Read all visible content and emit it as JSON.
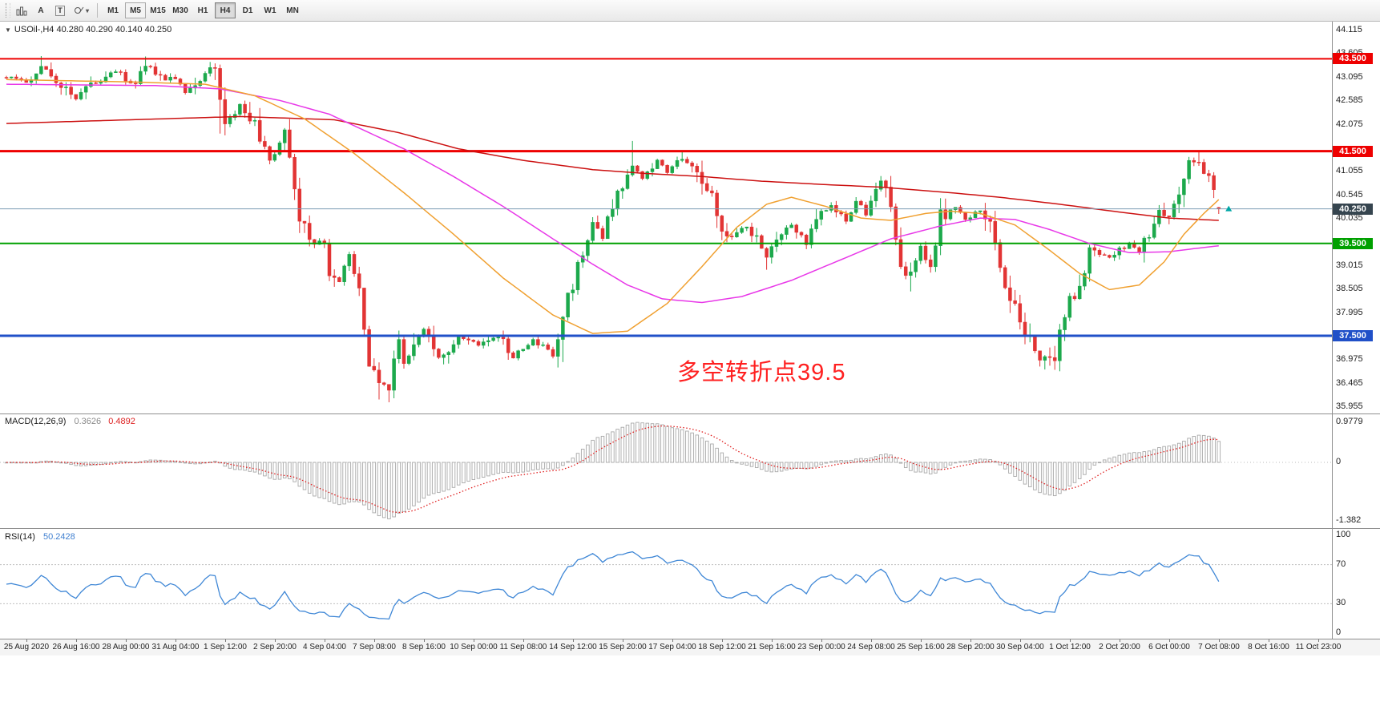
{
  "toolbar": {
    "tools": [
      {
        "name": "chart-icon"
      },
      {
        "name": "text-tool",
        "label": "A"
      },
      {
        "name": "label-tool",
        "label": "T"
      },
      {
        "name": "shapes-tool"
      }
    ],
    "timeframes": [
      {
        "label": "M1",
        "state": "normal"
      },
      {
        "label": "M5",
        "state": "hover"
      },
      {
        "label": "M15",
        "state": "normal"
      },
      {
        "label": "M30",
        "state": "normal"
      },
      {
        "label": "H1",
        "state": "normal"
      },
      {
        "label": "H4",
        "state": "active"
      },
      {
        "label": "D1",
        "state": "normal"
      },
      {
        "label": "W1",
        "state": "normal"
      },
      {
        "label": "MN",
        "state": "normal"
      }
    ]
  },
  "chart_data": {
    "type": "candlestick",
    "symbol": "USOil",
    "timeframe": "H4",
    "symbol_line": "USOil-,H4  40.280 40.290 40.140 40.250",
    "current_ohlc": {
      "open": 40.28,
      "high": 40.29,
      "low": 40.14,
      "close": 40.25
    },
    "annotation": {
      "text": "多空转折点39.5",
      "color": "#ff2020"
    },
    "price_axis": {
      "max": 44.115,
      "min": 35.955,
      "ticks": [
        44.115,
        43.605,
        43.095,
        42.585,
        42.075,
        41.055,
        40.545,
        40.035,
        39.015,
        38.505,
        37.995,
        36.975,
        36.465,
        35.955
      ]
    },
    "horizontal_levels": [
      {
        "price": 43.5,
        "color": "#ee0000",
        "width": 2,
        "label": "43.500"
      },
      {
        "price": 41.5,
        "color": "#ee0000",
        "width": 3,
        "label": "41.500"
      },
      {
        "price": 39.5,
        "color": "#00a000",
        "width": 2,
        "label": "39.500"
      },
      {
        "price": 37.5,
        "color": "#2050c8",
        "width": 3,
        "label": "37.500"
      }
    ],
    "current_price": {
      "value": 40.25,
      "label": "40.250",
      "line_color": "#7d9db4",
      "badge_color": "#36454f",
      "arrow_color": "#00a6a6"
    },
    "candle_count": 245,
    "candle_colors": {
      "up": "#1ca94c",
      "down": "#e23434"
    },
    "last_candle": [
      40.28,
      40.29,
      40.14,
      40.25
    ],
    "price_path_anchors": [
      [
        0,
        43.1
      ],
      [
        4,
        43.0
      ],
      [
        7,
        43.35
      ],
      [
        10,
        43.05
      ],
      [
        14,
        42.65
      ],
      [
        18,
        43.0
      ],
      [
        22,
        43.25
      ],
      [
        26,
        42.9
      ],
      [
        28,
        43.4
      ],
      [
        31,
        43.1
      ],
      [
        34,
        43.05
      ],
      [
        36,
        42.8
      ],
      [
        40,
        43.2
      ],
      [
        42,
        43.3
      ],
      [
        44,
        42.1
      ],
      [
        47,
        42.5
      ],
      [
        50,
        42.1
      ],
      [
        53,
        41.3
      ],
      [
        56,
        41.9
      ],
      [
        58,
        40.6
      ],
      [
        59,
        40.0
      ],
      [
        62,
        39.5
      ],
      [
        64,
        39.6
      ],
      [
        65,
        38.7
      ],
      [
        67,
        38.75
      ],
      [
        69,
        39.2
      ],
      [
        71,
        38.5
      ],
      [
        73,
        36.9
      ],
      [
        75,
        36.5
      ],
      [
        77,
        36.4
      ],
      [
        79,
        37.4
      ],
      [
        80,
        36.95
      ],
      [
        82,
        37.2
      ],
      [
        84,
        37.65
      ],
      [
        87,
        37.0
      ],
      [
        91,
        37.5
      ],
      [
        95,
        37.3
      ],
      [
        99,
        37.5
      ],
      [
        102,
        37.05
      ],
      [
        106,
        37.4
      ],
      [
        110,
        37.15
      ],
      [
        113,
        38.3
      ],
      [
        116,
        39.3
      ],
      [
        118,
        39.9
      ],
      [
        120,
        39.6
      ],
      [
        123,
        40.6
      ],
      [
        126,
        41.2
      ],
      [
        128,
        40.9
      ],
      [
        131,
        41.3
      ],
      [
        133,
        41.05
      ],
      [
        136,
        41.35
      ],
      [
        139,
        41.15
      ],
      [
        142,
        40.5
      ],
      [
        144,
        39.9
      ],
      [
        146,
        39.6
      ],
      [
        149,
        39.9
      ],
      [
        153,
        39.2
      ],
      [
        156,
        39.7
      ],
      [
        158,
        39.9
      ],
      [
        161,
        39.5
      ],
      [
        164,
        40.2
      ],
      [
        166,
        40.3
      ],
      [
        169,
        40.0
      ],
      [
        171,
        40.4
      ],
      [
        173,
        40.15
      ],
      [
        176,
        40.85
      ],
      [
        178,
        40.3
      ],
      [
        180,
        38.9
      ],
      [
        182,
        38.8
      ],
      [
        184,
        39.4
      ],
      [
        186,
        38.95
      ],
      [
        188,
        40.1
      ],
      [
        191,
        40.3
      ],
      [
        193,
        40.0
      ],
      [
        196,
        40.25
      ],
      [
        198,
        39.9
      ],
      [
        201,
        38.4
      ],
      [
        203,
        38.2
      ],
      [
        205,
        37.6
      ],
      [
        208,
        37.0
      ],
      [
        211,
        37.1
      ],
      [
        214,
        38.3
      ],
      [
        216,
        38.5
      ],
      [
        218,
        39.3
      ],
      [
        222,
        39.2
      ],
      [
        226,
        39.5
      ],
      [
        228,
        39.3
      ],
      [
        230,
        39.7
      ],
      [
        232,
        40.3
      ],
      [
        234,
        40.05
      ],
      [
        236,
        40.7
      ],
      [
        238,
        41.2
      ],
      [
        240,
        41.3
      ],
      [
        242,
        40.9
      ],
      [
        244,
        40.25
      ]
    ],
    "spikes": [
      {
        "i": 7,
        "high": 43.56
      },
      {
        "i": 28,
        "high": 43.55
      },
      {
        "i": 43,
        "low": 41.88
      },
      {
        "i": 59,
        "low": 39.86
      },
      {
        "i": 75,
        "low": 36.12
      },
      {
        "i": 77,
        "low": 36.06
      },
      {
        "i": 88,
        "low": 36.88
      },
      {
        "i": 112,
        "low": 36.93
      },
      {
        "i": 126,
        "high": 41.72
      },
      {
        "i": 136,
        "high": 41.5
      },
      {
        "i": 153,
        "low": 38.93
      },
      {
        "i": 176,
        "high": 40.96
      },
      {
        "i": 182,
        "low": 38.46
      },
      {
        "i": 209,
        "low": 36.77
      },
      {
        "i": 240,
        "high": 41.48
      }
    ],
    "moving_averages": [
      {
        "name": "ma-slow-red",
        "color": "#cc1111",
        "points": [
          [
            0,
            42.1
          ],
          [
            25,
            42.18
          ],
          [
            47,
            42.25
          ],
          [
            66,
            42.18
          ],
          [
            79,
            41.9
          ],
          [
            91,
            41.55
          ],
          [
            104,
            41.3
          ],
          [
            118,
            41.1
          ],
          [
            128,
            41.02
          ],
          [
            140,
            40.95
          ],
          [
            152,
            40.85
          ],
          [
            164,
            40.78
          ],
          [
            176,
            40.72
          ],
          [
            190,
            40.6
          ],
          [
            200,
            40.5
          ],
          [
            212,
            40.35
          ],
          [
            224,
            40.18
          ],
          [
            234,
            40.05
          ],
          [
            244,
            40.0
          ]
        ]
      },
      {
        "name": "ma-mid-magenta",
        "color": "#e838e8",
        "points": [
          [
            0,
            42.95
          ],
          [
            30,
            42.92
          ],
          [
            43,
            42.85
          ],
          [
            55,
            42.6
          ],
          [
            65,
            42.3
          ],
          [
            80,
            41.55
          ],
          [
            90,
            40.95
          ],
          [
            100,
            40.3
          ],
          [
            110,
            39.6
          ],
          [
            118,
            39.05
          ],
          [
            125,
            38.6
          ],
          [
            132,
            38.3
          ],
          [
            140,
            38.22
          ],
          [
            148,
            38.35
          ],
          [
            158,
            38.7
          ],
          [
            168,
            39.15
          ],
          [
            178,
            39.6
          ],
          [
            188,
            39.88
          ],
          [
            196,
            40.05
          ],
          [
            203,
            40.02
          ],
          [
            210,
            39.8
          ],
          [
            218,
            39.5
          ],
          [
            226,
            39.3
          ],
          [
            234,
            39.32
          ],
          [
            240,
            39.4
          ],
          [
            244,
            39.45
          ]
        ]
      },
      {
        "name": "ma-fast-orange",
        "color": "#f0a030",
        "points": [
          [
            0,
            43.05
          ],
          [
            25,
            43.0
          ],
          [
            40,
            42.95
          ],
          [
            50,
            42.7
          ],
          [
            60,
            42.2
          ],
          [
            70,
            41.45
          ],
          [
            80,
            40.6
          ],
          [
            90,
            39.7
          ],
          [
            100,
            38.75
          ],
          [
            110,
            37.95
          ],
          [
            118,
            37.55
          ],
          [
            125,
            37.6
          ],
          [
            133,
            38.2
          ],
          [
            140,
            39.0
          ],
          [
            147,
            39.85
          ],
          [
            153,
            40.35
          ],
          [
            158,
            40.5
          ],
          [
            165,
            40.3
          ],
          [
            172,
            40.05
          ],
          [
            178,
            40.0
          ],
          [
            185,
            40.15
          ],
          [
            190,
            40.2
          ],
          [
            196,
            40.15
          ],
          [
            203,
            39.9
          ],
          [
            210,
            39.35
          ],
          [
            216,
            38.85
          ],
          [
            222,
            38.5
          ],
          [
            228,
            38.6
          ],
          [
            233,
            39.1
          ],
          [
            237,
            39.7
          ],
          [
            241,
            40.15
          ],
          [
            244,
            40.45
          ]
        ]
      }
    ],
    "macd": {
      "label": "MACD(12,26,9)",
      "value_main": "0.3626",
      "value_signal": "0.4892",
      "axis_max": "0.9779",
      "axis_zero": "0",
      "axis_min": "-1.382",
      "params": [
        12,
        26,
        9
      ],
      "histogram_color": "#a8a8a8",
      "signal_color": "#e02020"
    },
    "rsi": {
      "label": "RSI(14)",
      "value": "50.2428",
      "period": 14,
      "levels": [
        "100",
        "70",
        "30",
        "0"
      ],
      "level_values": [
        100,
        70,
        30,
        0
      ],
      "dashed_levels": [
        70,
        30
      ],
      "line_color": "#3f87d6"
    },
    "x_labels": [
      "25 Aug 2020",
      "26 Aug 16:00",
      "28 Aug 00:00",
      "31 Aug 04:00",
      "1 Sep 12:00",
      "2 Sep 20:00",
      "4 Sep 04:00",
      "7 Sep 08:00",
      "8 Sep 16:00",
      "10 Sep 00:00",
      "11 Sep 08:00",
      "14 Sep 12:00",
      "15 Sep 20:00",
      "17 Sep 04:00",
      "18 Sep 12:00",
      "21 Sep 16:00",
      "23 Sep 00:00",
      "24 Sep 08:00",
      "25 Sep 16:00",
      "28 Sep 20:00",
      "30 Sep 04:00",
      "1 Oct 12:00",
      "2 Oct 20:00",
      "6 Oct 00:00",
      "7 Oct 08:00",
      "8 Oct 16:00",
      "11 Oct 23:00"
    ]
  }
}
